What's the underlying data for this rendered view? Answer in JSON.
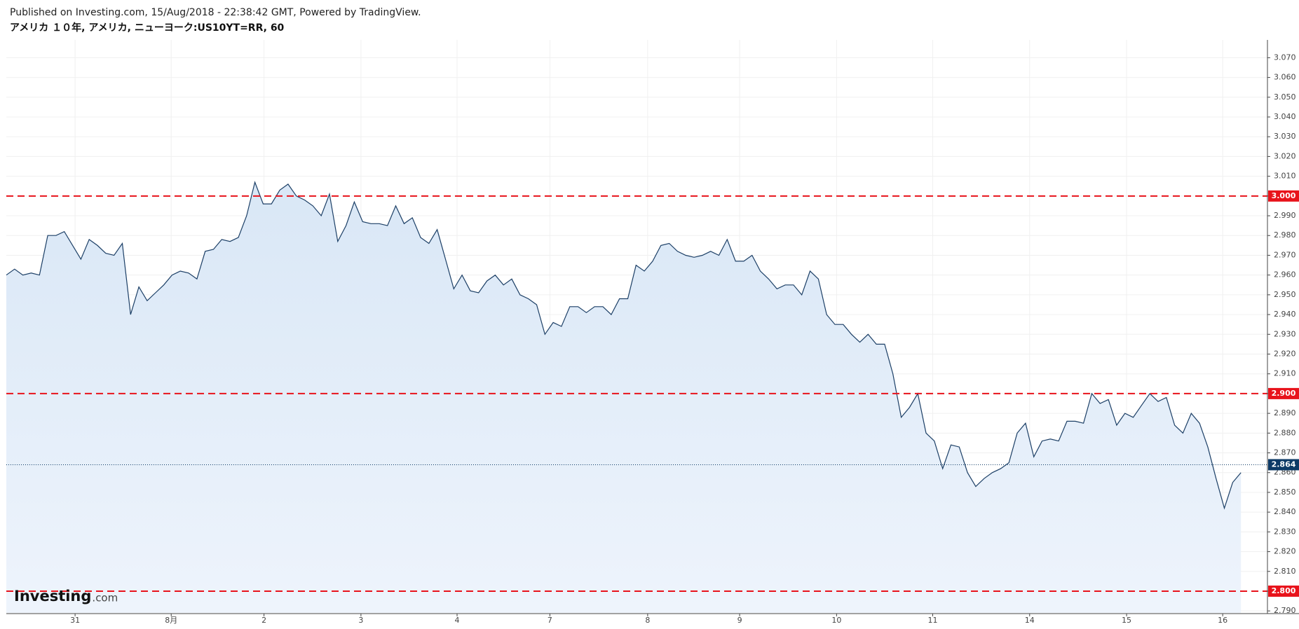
{
  "chart_data": {
    "type": "line",
    "title": "Published on Investing.com, 15/Aug/2018 - 22:38:42 GMT, Powered by TradingView.",
    "subtitle": "アメリカ １０年, アメリカ, ニューヨーク:US10YT=RR, 60",
    "color": "#1c3f66",
    "fill_color": "#dce9f7",
    "grid": true,
    "xlim": [
      0,
      152.2
    ],
    "xticks": [
      {
        "value": 8.3,
        "label": "31"
      },
      {
        "value": 19.9,
        "label": "8月"
      },
      {
        "value": 31.1,
        "label": "2"
      },
      {
        "value": 42.8,
        "label": "3"
      },
      {
        "value": 54.4,
        "label": "4"
      },
      {
        "value": 65.6,
        "label": "7"
      },
      {
        "value": 77.4,
        "label": "8"
      },
      {
        "value": 88.5,
        "label": "9"
      },
      {
        "value": 100.2,
        "label": "10"
      },
      {
        "value": 111.8,
        "label": "11"
      },
      {
        "value": 123.5,
        "label": "14"
      },
      {
        "value": 135.2,
        "label": "15"
      },
      {
        "value": 146.8,
        "label": "16"
      }
    ],
    "ylim": [
      2.789,
      3.079
    ],
    "yticks": [
      {
        "value": 2.79,
        "label": "2.790"
      },
      {
        "value": 2.8,
        "label": "2.800"
      },
      {
        "value": 2.81,
        "label": "2.810"
      },
      {
        "value": 2.82,
        "label": "2.820"
      },
      {
        "value": 2.83,
        "label": "2.830"
      },
      {
        "value": 2.84,
        "label": "2.840"
      },
      {
        "value": 2.85,
        "label": "2.850"
      },
      {
        "value": 2.86,
        "label": "2.860"
      },
      {
        "value": 2.87,
        "label": "2.870"
      },
      {
        "value": 2.88,
        "label": "2.880"
      },
      {
        "value": 2.89,
        "label": "2.890"
      },
      {
        "value": 2.9,
        "label": "2.900"
      },
      {
        "value": 2.91,
        "label": "2.910"
      },
      {
        "value": 2.92,
        "label": "2.920"
      },
      {
        "value": 2.93,
        "label": "2.930"
      },
      {
        "value": 2.94,
        "label": "2.940"
      },
      {
        "value": 2.95,
        "label": "2.950"
      },
      {
        "value": 2.96,
        "label": "2.960"
      },
      {
        "value": 2.97,
        "label": "2.970"
      },
      {
        "value": 2.98,
        "label": "2.980"
      },
      {
        "value": 2.99,
        "label": "2.990"
      },
      {
        "value": 3.0,
        "label": "3.000"
      },
      {
        "value": 3.01,
        "label": "3.010"
      },
      {
        "value": 3.02,
        "label": "3.020"
      },
      {
        "value": 3.03,
        "label": "3.030"
      },
      {
        "value": 3.04,
        "label": "3.040"
      },
      {
        "value": 3.05,
        "label": "3.050"
      },
      {
        "value": 3.06,
        "label": "3.060"
      },
      {
        "value": 3.07,
        "label": "3.070"
      }
    ],
    "hlines": [
      {
        "value": 3.0,
        "label": "3.000",
        "color": "#e8131b"
      },
      {
        "value": 2.9,
        "label": "2.900",
        "color": "#e8131b"
      },
      {
        "value": 2.8,
        "label": "2.800",
        "color": "#e8131b"
      }
    ],
    "last": {
      "value": 2.864,
      "label": "2.864",
      "color": "#0d3a66"
    },
    "values": [
      2.96,
      2.963,
      2.96,
      2.961,
      2.96,
      2.98,
      2.98,
      2.982,
      2.975,
      2.968,
      2.978,
      2.975,
      2.971,
      2.97,
      2.976,
      2.94,
      2.954,
      2.947,
      2.951,
      2.955,
      2.96,
      2.962,
      2.961,
      2.958,
      2.972,
      2.973,
      2.978,
      2.977,
      2.979,
      2.99,
      3.007,
      2.996,
      2.996,
      3.003,
      3.006,
      3.0,
      2.998,
      2.995,
      2.99,
      3.001,
      2.977,
      2.985,
      2.997,
      2.987,
      2.986,
      2.986,
      2.985,
      2.995,
      2.986,
      2.989,
      2.979,
      2.976,
      2.983,
      2.968,
      2.953,
      2.96,
      2.952,
      2.951,
      2.957,
      2.96,
      2.955,
      2.958,
      2.95,
      2.948,
      2.945,
      2.93,
      2.936,
      2.934,
      2.944,
      2.944,
      2.941,
      2.944,
      2.944,
      2.94,
      2.948,
      2.948,
      2.965,
      2.962,
      2.967,
      2.975,
      2.976,
      2.972,
      2.97,
      2.969,
      2.97,
      2.972,
      2.97,
      2.978,
      2.967,
      2.967,
      2.97,
      2.962,
      2.958,
      2.953,
      2.955,
      2.955,
      2.95,
      2.962,
      2.958,
      2.94,
      2.935,
      2.935,
      2.93,
      2.926,
      2.93,
      2.925,
      2.925,
      2.91,
      2.888,
      2.893,
      2.9,
      2.88,
      2.876,
      2.862,
      2.874,
      2.873,
      2.86,
      2.853,
      2.857,
      2.86,
      2.862,
      2.865,
      2.88,
      2.885,
      2.868,
      2.876,
      2.877,
      2.876,
      2.886,
      2.886,
      2.885,
      2.9,
      2.895,
      2.897,
      2.884,
      2.89,
      2.888,
      2.894,
      2.9,
      2.896,
      2.898,
      2.884,
      2.88,
      2.89,
      2.885,
      2.873,
      2.857,
      2.842,
      2.855,
      2.86
    ],
    "watermark": {
      "brand": "Investing",
      "suffix": ".com"
    }
  }
}
